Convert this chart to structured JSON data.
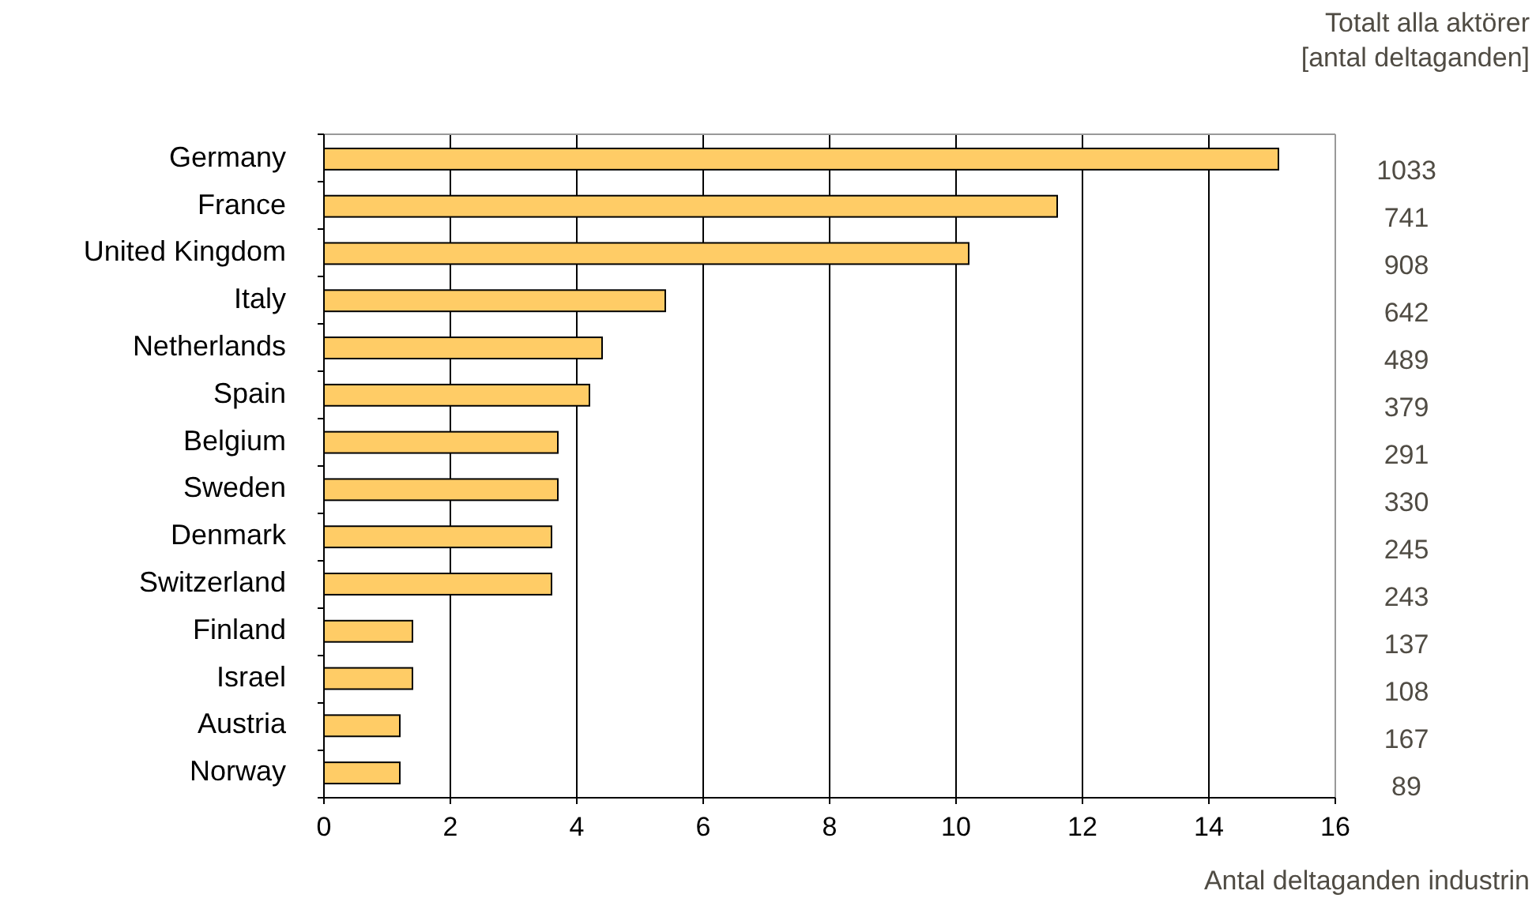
{
  "chart_data": {
    "type": "bar",
    "orientation": "horizontal",
    "categories": [
      "Germany",
      "France",
      "United Kingdom",
      "Italy",
      "Netherlands",
      "Spain",
      "Belgium",
      "Sweden",
      "Denmark",
      "Switzerland",
      "Finland",
      "Israel",
      "Austria",
      "Norway"
    ],
    "values": [
      15.1,
      11.6,
      10.2,
      5.4,
      4.4,
      4.2,
      3.7,
      3.7,
      3.6,
      3.6,
      1.4,
      1.4,
      1.2,
      1.2
    ],
    "color": "#ffcc66",
    "xlim": [
      0,
      16
    ],
    "xticks": [
      0,
      2,
      4,
      6,
      8,
      10,
      12,
      14,
      16
    ],
    "grid": "x",
    "xlabel": "Antal deltaganden industrin",
    "annotations": [
      "Totalt alla aktörer\n[antal deltaganden]",
      "1033",
      "741",
      "908",
      "642",
      "489",
      "379",
      "291",
      "330",
      "245",
      "243",
      "137",
      "108",
      "167",
      "89"
    ]
  }
}
